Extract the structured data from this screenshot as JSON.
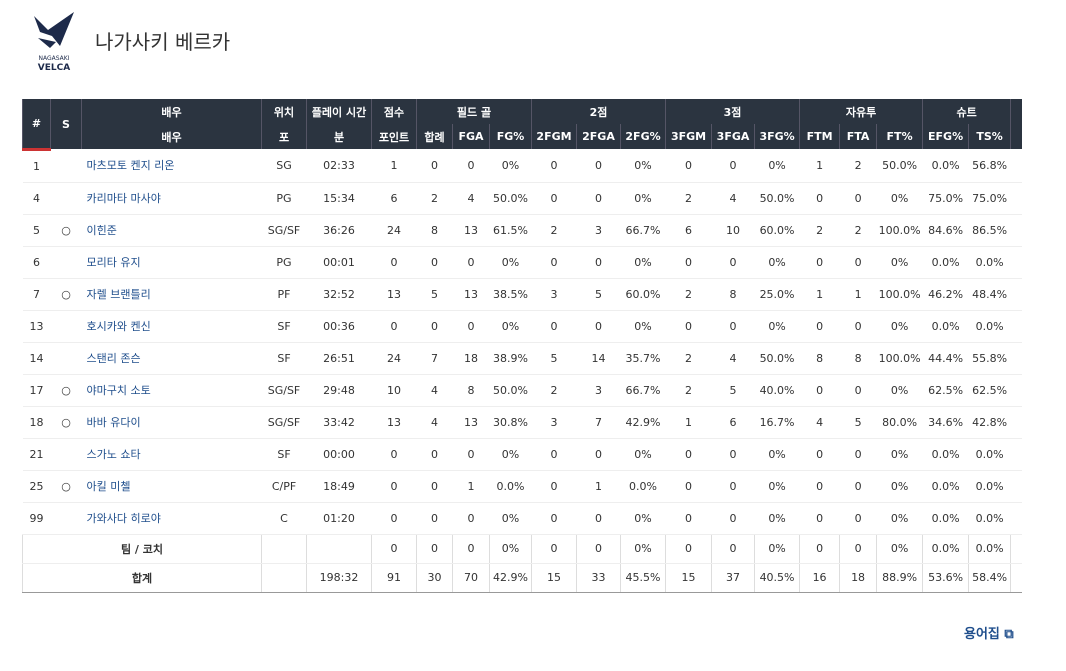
{
  "header": {
    "title": "나가사키 베르카",
    "logo": [
      "NAGASAKI",
      "VELCA"
    ]
  },
  "table": {
    "group_headers": [
      "#",
      "S",
      "배우",
      "위치",
      "플레이 시간",
      "점수",
      "필드 골",
      "2점",
      "3점",
      "자유투",
      "슈트"
    ],
    "columns": [
      "배우",
      "포",
      "분",
      "포인트",
      "합례",
      "FGA",
      "FG%",
      "2FGM",
      "2FGA",
      "2FG%",
      "3FGM",
      "3FGA",
      "3FG%",
      "FTM",
      "FTA",
      "FT%",
      "EFG%",
      "TS%"
    ],
    "rows": [
      [
        "1",
        null,
        "마츠모토 켄지 리온",
        "SG",
        "02:33",
        "1",
        "0",
        "0",
        "0%",
        "0",
        "0",
        "0%",
        "0",
        "0",
        "0%",
        "1",
        "2",
        "50.0%",
        "0.0%",
        "56.8%"
      ],
      [
        "4",
        null,
        "카리마타 마사야",
        "PG",
        "15:34",
        "6",
        "2",
        "4",
        "50.0%",
        "0",
        "0",
        "0%",
        "2",
        "4",
        "50.0%",
        "0",
        "0",
        "0%",
        "75.0%",
        "75.0%"
      ],
      [
        "5",
        "○",
        "이힌준",
        "SG/SF",
        "36:26",
        "24",
        "8",
        "13",
        "61.5%",
        "2",
        "3",
        "66.7%",
        "6",
        "10",
        "60.0%",
        "2",
        "2",
        "100.0%",
        "84.6%",
        "86.5%"
      ],
      [
        "6",
        null,
        "모리타 유지",
        "PG",
        "00:01",
        "0",
        "0",
        "0",
        "0%",
        "0",
        "0",
        "0%",
        "0",
        "0",
        "0%",
        "0",
        "0",
        "0%",
        "0.0%",
        "0.0%"
      ],
      [
        "7",
        "○",
        "자렐 브랜틀리",
        "PF",
        "32:52",
        "13",
        "5",
        "13",
        "38.5%",
        "3",
        "5",
        "60.0%",
        "2",
        "8",
        "25.0%",
        "1",
        "1",
        "100.0%",
        "46.2%",
        "48.4%"
      ],
      [
        "13",
        null,
        "호시카와 켄신",
        "SF",
        "00:36",
        "0",
        "0",
        "0",
        "0%",
        "0",
        "0",
        "0%",
        "0",
        "0",
        "0%",
        "0",
        "0",
        "0%",
        "0.0%",
        "0.0%"
      ],
      [
        "14",
        null,
        "스탠리 존슨",
        "SF",
        "26:51",
        "24",
        "7",
        "18",
        "38.9%",
        "5",
        "14",
        "35.7%",
        "2",
        "4",
        "50.0%",
        "8",
        "8",
        "100.0%",
        "44.4%",
        "55.8%"
      ],
      [
        "17",
        "○",
        "야마구치 소토",
        "SG/SF",
        "29:48",
        "10",
        "4",
        "8",
        "50.0%",
        "2",
        "3",
        "66.7%",
        "2",
        "5",
        "40.0%",
        "0",
        "0",
        "0%",
        "62.5%",
        "62.5%"
      ],
      [
        "18",
        "○",
        "바바 유다이",
        "SG/SF",
        "33:42",
        "13",
        "4",
        "13",
        "30.8%",
        "3",
        "7",
        "42.9%",
        "1",
        "6",
        "16.7%",
        "4",
        "5",
        "80.0%",
        "34.6%",
        "42.8%"
      ],
      [
        "21",
        null,
        "스가노 쇼타",
        "SF",
        "00:00",
        "0",
        "0",
        "0",
        "0%",
        "0",
        "0",
        "0%",
        "0",
        "0",
        "0%",
        "0",
        "0",
        "0%",
        "0.0%",
        "0.0%"
      ],
      [
        "25",
        "○",
        "아킬 미첼",
        "C/PF",
        "18:49",
        "0",
        "0",
        "1",
        "0.0%",
        "0",
        "1",
        "0.0%",
        "0",
        "0",
        "0%",
        "0",
        "0",
        "0%",
        "0.0%",
        "0.0%"
      ],
      [
        "99",
        null,
        "가와사다 히로야",
        "C",
        "01:20",
        "0",
        "0",
        "0",
        "0%",
        "0",
        "0",
        "0%",
        "0",
        "0",
        "0%",
        "0",
        "0",
        "0%",
        "0.0%",
        "0.0%"
      ]
    ],
    "team_row": [
      "팀 / 코치",
      null,
      null,
      "0",
      "0",
      "0",
      "0%",
      "0",
      "0",
      "0%",
      "0",
      "0",
      "0%",
      "0",
      "0",
      "0%",
      "0.0%",
      "0.0%"
    ],
    "total_row": [
      "합계",
      null,
      "198:32",
      "91",
      "30",
      "70",
      "42.9%",
      "15",
      "33",
      "45.5%",
      "15",
      "37",
      "40.5%",
      "16",
      "18",
      "88.9%",
      "53.6%",
      "58.4%"
    ]
  },
  "footer": {
    "glossary": "용어집"
  }
}
